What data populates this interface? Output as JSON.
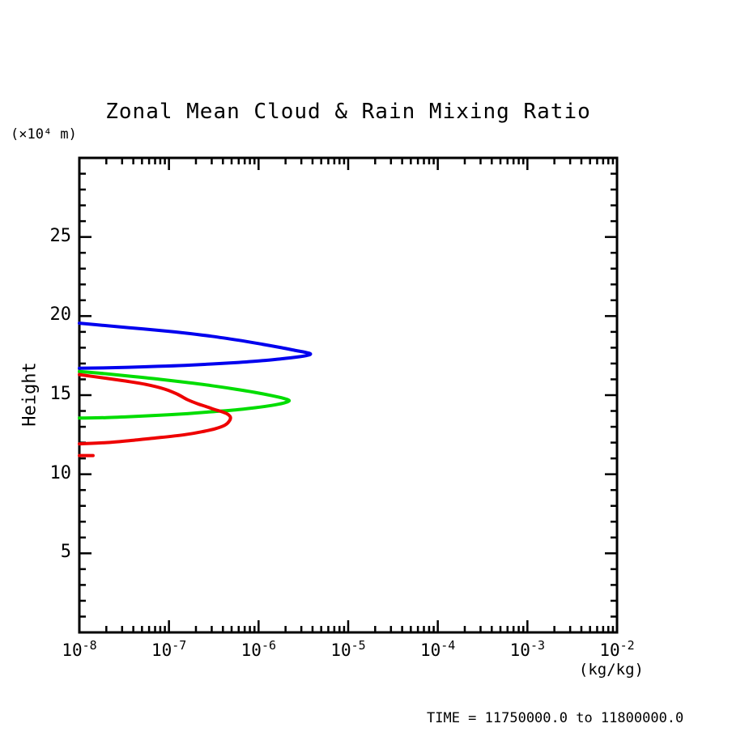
{
  "chart_data": {
    "type": "line",
    "title": "Zonal Mean Cloud & Rain Mixing Ratio",
    "ylabel": "Height",
    "ylabel_unit": "(×10⁴ m)",
    "xlabel_unit": "(kg/kg)",
    "footnote": "TIME = 11750000.0 to 11800000.0",
    "x_scale": "log",
    "xlim": [
      1e-08,
      0.01
    ],
    "ylim": [
      0,
      30
    ],
    "xtick_exponents": [
      -8,
      -7,
      -6,
      -5,
      -4,
      -3,
      -2
    ],
    "yticks": [
      5,
      10,
      15,
      20,
      25
    ],
    "y_minor_step": 1,
    "grid": false,
    "legend": "none",
    "axis_color": "#000000",
    "series": [
      {
        "name": "blue-curve",
        "color": "#0000ee",
        "points": [
          [
            1e-08,
            19.55
          ],
          [
            1.8e-08,
            19.42
          ],
          [
            3.5e-08,
            19.27
          ],
          [
            7.5e-08,
            19.1
          ],
          [
            1.5e-07,
            18.93
          ],
          [
            3e-07,
            18.72
          ],
          [
            6e-07,
            18.47
          ],
          [
            1.1e-06,
            18.22
          ],
          [
            1.8e-06,
            18.0
          ],
          [
            2.6e-06,
            17.82
          ],
          [
            3.4e-06,
            17.7
          ],
          [
            3.8e-06,
            17.6
          ],
          [
            3.4e-06,
            17.5
          ],
          [
            2.6e-06,
            17.4
          ],
          [
            1.8e-06,
            17.3
          ],
          [
            1.1e-06,
            17.18
          ],
          [
            6e-07,
            17.07
          ],
          [
            3e-07,
            16.97
          ],
          [
            1.5e-07,
            16.88
          ],
          [
            7.5e-08,
            16.82
          ],
          [
            3.5e-08,
            16.76
          ],
          [
            1.8e-08,
            16.72
          ],
          [
            1e-08,
            16.7
          ]
        ]
      },
      {
        "name": "green-curve",
        "color": "#00dd00",
        "points": [
          [
            1e-08,
            16.5
          ],
          [
            2e-08,
            16.35
          ],
          [
            4e-08,
            16.18
          ],
          [
            8e-08,
            16.0
          ],
          [
            1.6e-07,
            15.8
          ],
          [
            3e-07,
            15.6
          ],
          [
            5.5e-07,
            15.38
          ],
          [
            9e-07,
            15.18
          ],
          [
            1.4e-06,
            14.97
          ],
          [
            1.9e-06,
            14.8
          ],
          [
            2.2e-06,
            14.65
          ],
          [
            1.9e-06,
            14.5
          ],
          [
            1.4e-06,
            14.35
          ],
          [
            9e-07,
            14.2
          ],
          [
            5.5e-07,
            14.07
          ],
          [
            3e-07,
            13.95
          ],
          [
            1.6e-07,
            13.83
          ],
          [
            8e-08,
            13.73
          ],
          [
            4e-08,
            13.65
          ],
          [
            2e-08,
            13.58
          ],
          [
            1e-08,
            13.55
          ]
        ]
      },
      {
        "name": "red-curve",
        "color": "#ee0000",
        "points": [
          [
            1e-08,
            16.3
          ],
          [
            1.8e-08,
            16.1
          ],
          [
            3.2e-08,
            15.9
          ],
          [
            5.5e-08,
            15.68
          ],
          [
            9e-08,
            15.38
          ],
          [
            1.25e-07,
            15.05
          ],
          [
            1.6e-07,
            14.72
          ],
          [
            2.1e-07,
            14.45
          ],
          [
            2.6e-07,
            14.28
          ],
          [
            3.2e-07,
            14.1
          ],
          [
            3.9e-07,
            13.95
          ],
          [
            4.5e-07,
            13.8
          ],
          [
            4.85e-07,
            13.6
          ],
          [
            4.7e-07,
            13.35
          ],
          [
            4.2e-07,
            13.1
          ],
          [
            3.3e-07,
            12.88
          ],
          [
            2.3e-07,
            12.68
          ],
          [
            1.5e-07,
            12.5
          ],
          [
            8e-08,
            12.32
          ],
          [
            4e-08,
            12.15
          ],
          [
            2e-08,
            12.0
          ],
          [
            1e-08,
            11.92
          ]
        ]
      },
      {
        "name": "red-curve-lower-segment",
        "color": "#ee0000",
        "points": [
          [
            1e-08,
            11.18
          ],
          [
            1.42e-08,
            11.18
          ]
        ]
      }
    ]
  }
}
